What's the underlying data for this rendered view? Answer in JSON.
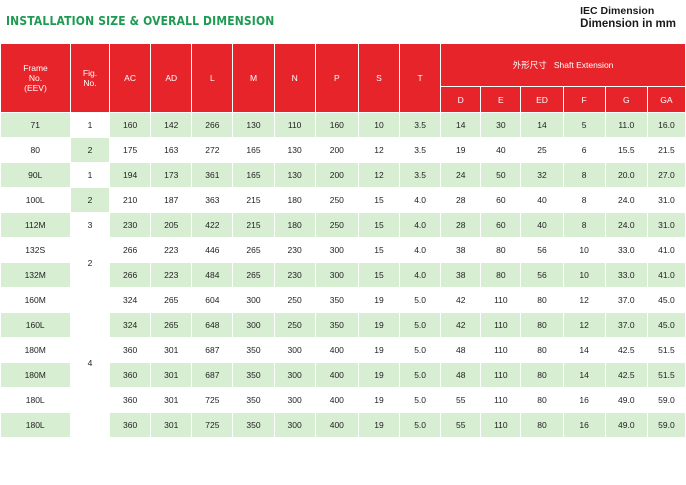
{
  "heading": "INSTALLATION SIZE & OVERALL DIMENSION",
  "iec": {
    "line1": "IEC Dimension",
    "line2": "Dimension in mm"
  },
  "table": {
    "frame_header": [
      "Frame",
      "No.",
      "(EEV)"
    ],
    "fig_header": [
      "Fig.",
      "No."
    ],
    "columns": [
      "AC",
      "AD",
      "L",
      "M",
      "N",
      "P",
      "S",
      "T"
    ],
    "shaft_group": "外形尺寸   Shaft Extension",
    "shaft_columns": [
      "D",
      "E",
      "ED",
      "F",
      "G",
      "GA"
    ],
    "rows": [
      {
        "frame": "71",
        "fig": "1",
        "AC": "160",
        "AD": "142",
        "L": "266",
        "M": "130",
        "N": "110",
        "P": "160",
        "S": "10",
        "T": "3.5",
        "D": "14",
        "E": "30",
        "ED": "14",
        "F": "5",
        "G": "11.0",
        "GA": "16.0"
      },
      {
        "frame": "80",
        "fig": "2",
        "AC": "175",
        "AD": "163",
        "L": "272",
        "M": "165",
        "N": "130",
        "P": "200",
        "S": "12",
        "T": "3.5",
        "D": "19",
        "E": "40",
        "ED": "25",
        "F": "6",
        "G": "15.5",
        "GA": "21.5"
      },
      {
        "frame": "90L",
        "fig": "1",
        "AC": "194",
        "AD": "173",
        "L": "361",
        "M": "165",
        "N": "130",
        "P": "200",
        "S": "12",
        "T": "3.5",
        "D": "24",
        "E": "50",
        "ED": "32",
        "F": "8",
        "G": "20.0",
        "GA": "27.0"
      },
      {
        "frame": "100L",
        "fig": "2",
        "AC": "210",
        "AD": "187",
        "L": "363",
        "M": "215",
        "N": "180",
        "P": "250",
        "S": "15",
        "T": "4.0",
        "D": "28",
        "E": "60",
        "ED": "40",
        "F": "8",
        "G": "24.0",
        "GA": "31.0"
      },
      {
        "frame": "112M",
        "fig": "3",
        "AC": "230",
        "AD": "205",
        "L": "422",
        "M": "215",
        "N": "180",
        "P": "250",
        "S": "15",
        "T": "4.0",
        "D": "28",
        "E": "60",
        "ED": "40",
        "F": "8",
        "G": "24.0",
        "GA": "31.0"
      },
      {
        "frame": "132S",
        "fig": "2",
        "AC": "266",
        "AD": "223",
        "L": "446",
        "M": "265",
        "N": "230",
        "P": "300",
        "S": "15",
        "T": "4.0",
        "D": "38",
        "E": "80",
        "ED": "56",
        "F": "10",
        "G": "33.0",
        "GA": "41.0"
      },
      {
        "frame": "132M",
        "fig": "",
        "AC": "266",
        "AD": "223",
        "L": "484",
        "M": "265",
        "N": "230",
        "P": "300",
        "S": "15",
        "T": "4.0",
        "D": "38",
        "E": "80",
        "ED": "56",
        "F": "10",
        "G": "33.0",
        "GA": "41.0"
      },
      {
        "frame": "160M",
        "fig": "4",
        "AC": "324",
        "AD": "265",
        "L": "604",
        "M": "300",
        "N": "250",
        "P": "350",
        "S": "19",
        "T": "5.0",
        "D": "42",
        "E": "110",
        "ED": "80",
        "F": "12",
        "G": "37.0",
        "GA": "45.0"
      },
      {
        "frame": "160L",
        "fig": "",
        "AC": "324",
        "AD": "265",
        "L": "648",
        "M": "300",
        "N": "250",
        "P": "350",
        "S": "19",
        "T": "5.0",
        "D": "42",
        "E": "110",
        "ED": "80",
        "F": "12",
        "G": "37.0",
        "GA": "45.0"
      },
      {
        "frame": "180M",
        "fig": "",
        "AC": "360",
        "AD": "301",
        "L": "687",
        "M": "350",
        "N": "300",
        "P": "400",
        "S": "19",
        "T": "5.0",
        "D": "48",
        "E": "110",
        "ED": "80",
        "F": "14",
        "G": "42.5",
        "GA": "51.5"
      },
      {
        "frame": "180M",
        "fig": "",
        "AC": "360",
        "AD": "301",
        "L": "687",
        "M": "350",
        "N": "300",
        "P": "400",
        "S": "19",
        "T": "5.0",
        "D": "48",
        "E": "110",
        "ED": "80",
        "F": "14",
        "G": "42.5",
        "GA": "51.5"
      },
      {
        "frame": "180L",
        "fig": "",
        "AC": "360",
        "AD": "301",
        "L": "725",
        "M": "350",
        "N": "300",
        "P": "400",
        "S": "19",
        "T": "5.0",
        "D": "55",
        "E": "110",
        "ED": "80",
        "F": "16",
        "G": "49.0",
        "GA": "59.0"
      },
      {
        "frame": "180L",
        "fig": "",
        "AC": "360",
        "AD": "301",
        "L": "725",
        "M": "350",
        "N": "300",
        "P": "400",
        "S": "19",
        "T": "5.0",
        "D": "55",
        "E": "110",
        "ED": "80",
        "F": "16",
        "G": "49.0",
        "GA": "59.0"
      }
    ]
  }
}
